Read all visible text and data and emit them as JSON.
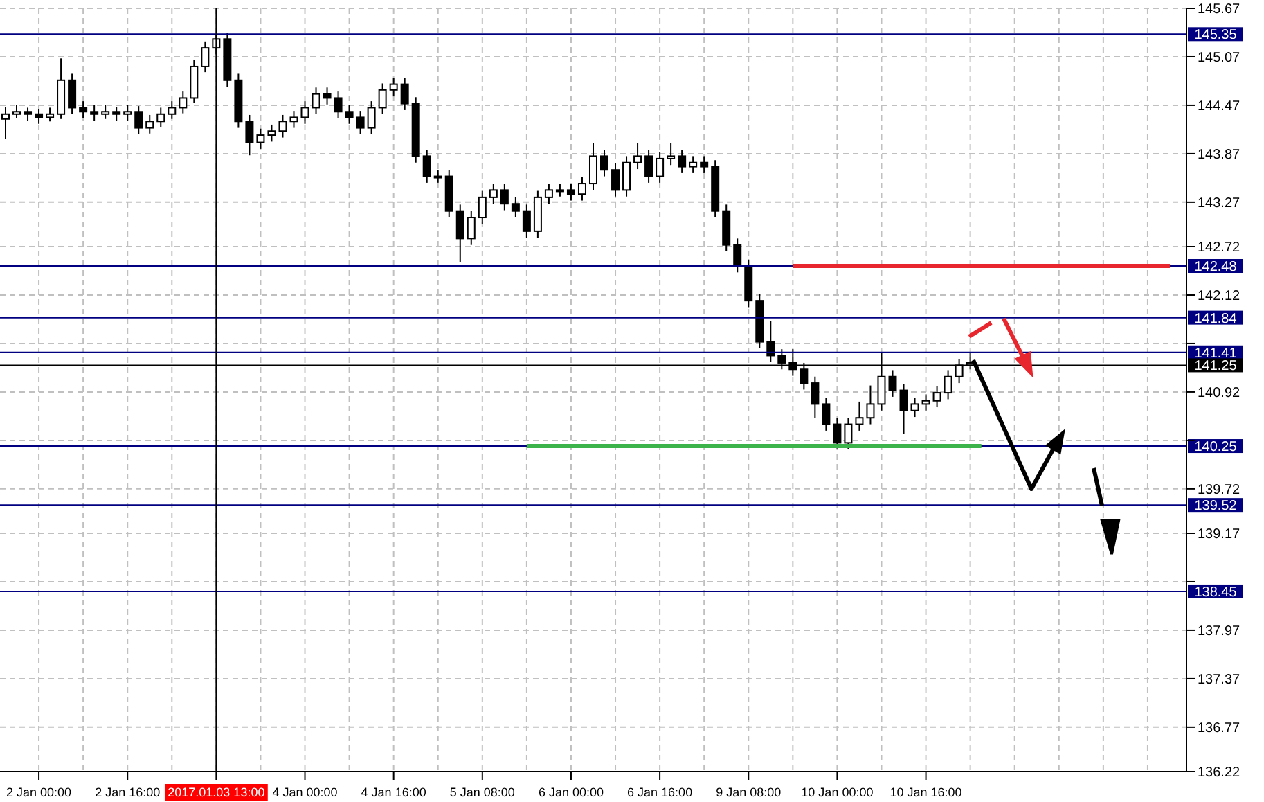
{
  "chart_data": {
    "type": "candlestick",
    "color": "#000000",
    "grid": true,
    "categories": [
      null,
      null,
      null,
      "2 Jan 00:00",
      null,
      null,
      null,
      null,
      null,
      null,
      null,
      "2 Jan 16:00",
      null,
      null,
      null,
      null,
      null,
      null,
      null,
      "2017.01.03 13:00",
      null,
      null,
      null,
      null,
      null,
      null,
      null,
      "4 Jan 00:00",
      null,
      null,
      null,
      null,
      null,
      null,
      null,
      "4 Jan 16:00",
      null,
      null,
      null,
      null,
      null,
      null,
      null,
      "5 Jan 08:00",
      null,
      null,
      null,
      null,
      null,
      null,
      null,
      "6 Jan 00:00",
      null,
      null,
      null,
      null,
      null,
      null,
      null,
      "6 Jan 16:00",
      null,
      null,
      null,
      null,
      null,
      null,
      null,
      "9 Jan 08:00",
      null,
      null,
      null,
      null,
      null,
      null,
      null,
      "10 Jan 00:00",
      null,
      null,
      null,
      null,
      null,
      null,
      null,
      "10 Jan 16:00",
      null,
      null,
      null,
      null,
      null,
      null,
      null,
      null,
      null,
      null,
      null,
      null,
      null,
      null,
      null,
      null,
      null,
      null,
      null,
      null,
      null,
      null,
      null
    ],
    "ohlc": [
      [
        144.3,
        144.45,
        144.05,
        144.36
      ],
      [
        144.36,
        144.47,
        144.31,
        144.39
      ],
      [
        144.39,
        144.44,
        144.28,
        144.36
      ],
      [
        144.36,
        144.42,
        144.24,
        144.32
      ],
      [
        144.32,
        144.44,
        144.27,
        144.36
      ],
      [
        144.36,
        145.05,
        144.3,
        144.78
      ],
      [
        144.78,
        144.86,
        144.36,
        144.44
      ],
      [
        144.44,
        144.52,
        144.31,
        144.39
      ],
      [
        144.39,
        144.47,
        144.28,
        144.36
      ],
      [
        144.36,
        144.47,
        144.3,
        144.39
      ],
      [
        144.39,
        144.45,
        144.28,
        144.36
      ],
      [
        144.36,
        144.47,
        144.28,
        144.39
      ],
      [
        144.39,
        144.46,
        144.11,
        144.19
      ],
      [
        144.19,
        144.35,
        144.12,
        144.27
      ],
      [
        144.27,
        144.44,
        144.2,
        144.36
      ],
      [
        144.36,
        144.52,
        144.3,
        144.44
      ],
      [
        144.44,
        144.64,
        144.37,
        144.56
      ],
      [
        144.56,
        145.03,
        144.5,
        144.95
      ],
      [
        144.95,
        145.26,
        144.88,
        145.18
      ],
      [
        145.18,
        145.35,
        145.1,
        145.29
      ],
      [
        145.29,
        145.37,
        144.7,
        144.78
      ],
      [
        144.78,
        144.86,
        144.19,
        144.27
      ],
      [
        144.27,
        144.35,
        143.85,
        144.01
      ],
      [
        144.01,
        144.18,
        143.93,
        144.1
      ],
      [
        144.1,
        144.23,
        144.02,
        144.15
      ],
      [
        144.15,
        144.35,
        144.07,
        144.27
      ],
      [
        144.27,
        144.4,
        144.19,
        144.32
      ],
      [
        144.32,
        144.52,
        144.24,
        144.44
      ],
      [
        144.44,
        144.69,
        144.36,
        144.61
      ],
      [
        144.61,
        144.69,
        144.48,
        144.56
      ],
      [
        144.56,
        144.64,
        144.31,
        144.39
      ],
      [
        144.39,
        144.47,
        144.24,
        144.32
      ],
      [
        144.32,
        144.4,
        144.11,
        144.19
      ],
      [
        144.19,
        144.52,
        144.11,
        144.44
      ],
      [
        144.44,
        144.74,
        144.36,
        144.66
      ],
      [
        144.66,
        144.81,
        144.58,
        144.73
      ],
      [
        144.73,
        144.81,
        144.41,
        144.49
      ],
      [
        144.49,
        144.57,
        143.76,
        143.84
      ],
      [
        143.84,
        143.92,
        143.51,
        143.59
      ],
      [
        143.59,
        143.67,
        143.51,
        143.59
      ],
      [
        143.59,
        143.67,
        143.08,
        143.16
      ],
      [
        143.16,
        143.24,
        142.53,
        142.82
      ],
      [
        142.82,
        143.16,
        142.74,
        143.08
      ],
      [
        143.08,
        143.41,
        143.0,
        143.33
      ],
      [
        143.33,
        143.5,
        143.25,
        143.42
      ],
      [
        143.42,
        143.5,
        143.17,
        143.25
      ],
      [
        143.25,
        143.33,
        143.08,
        143.16
      ],
      [
        143.16,
        143.24,
        142.83,
        142.91
      ],
      [
        142.91,
        143.41,
        142.83,
        143.33
      ],
      [
        143.33,
        143.5,
        143.25,
        143.42
      ],
      [
        143.42,
        143.5,
        143.34,
        143.42
      ],
      [
        143.42,
        143.5,
        143.29,
        143.37
      ],
      [
        143.37,
        143.58,
        143.29,
        143.5
      ],
      [
        143.5,
        144.0,
        143.42,
        143.84
      ],
      [
        143.84,
        143.92,
        143.59,
        143.67
      ],
      [
        143.67,
        143.75,
        143.34,
        143.42
      ],
      [
        143.42,
        143.84,
        143.34,
        143.76
      ],
      [
        143.76,
        144.0,
        143.68,
        143.84
      ],
      [
        143.84,
        143.92,
        143.51,
        143.59
      ],
      [
        143.59,
        143.89,
        143.51,
        143.81
      ],
      [
        143.81,
        144.0,
        143.73,
        143.84
      ],
      [
        143.84,
        143.92,
        143.63,
        143.71
      ],
      [
        143.71,
        143.84,
        143.63,
        143.76
      ],
      [
        143.76,
        143.84,
        143.63,
        143.71
      ],
      [
        143.71,
        143.79,
        143.08,
        143.16
      ],
      [
        143.16,
        143.24,
        142.66,
        142.74
      ],
      [
        142.74,
        142.82,
        142.4,
        142.48
      ],
      [
        142.48,
        142.56,
        141.97,
        142.05
      ],
      [
        142.05,
        142.13,
        141.46,
        141.54
      ],
      [
        141.54,
        141.8,
        141.29,
        141.37
      ],
      [
        141.37,
        141.45,
        141.2,
        141.28
      ],
      [
        141.28,
        141.45,
        141.12,
        141.2
      ],
      [
        141.2,
        141.28,
        140.95,
        141.03
      ],
      [
        141.03,
        141.11,
        140.6,
        140.77
      ],
      [
        140.77,
        140.85,
        140.44,
        140.52
      ],
      [
        140.52,
        140.6,
        140.22,
        140.29
      ],
      [
        140.29,
        140.6,
        140.21,
        140.52
      ],
      [
        140.52,
        140.8,
        140.44,
        140.6
      ],
      [
        140.6,
        141.0,
        140.52,
        140.77
      ],
      [
        140.77,
        141.4,
        140.69,
        141.11
      ],
      [
        141.11,
        141.19,
        140.86,
        140.94
      ],
      [
        140.94,
        141.02,
        140.4,
        140.69
      ],
      [
        140.69,
        140.85,
        140.61,
        140.77
      ],
      [
        140.77,
        140.89,
        140.69,
        140.81
      ],
      [
        140.81,
        140.99,
        140.73,
        140.91
      ],
      [
        140.91,
        141.19,
        140.83,
        141.11
      ],
      [
        141.11,
        141.33,
        141.03,
        141.25
      ],
      [
        141.25,
        141.4,
        141.2,
        141.28
      ],
      null,
      null,
      null,
      null,
      null,
      null,
      null,
      null,
      null,
      null,
      null,
      null,
      null,
      null,
      null,
      null,
      null,
      null,
      null
    ],
    "series": [
      {
        "type": "line",
        "color": "#e8262d",
        "values": [
          null,
          null,
          null,
          null,
          null,
          null,
          null,
          null,
          null,
          null,
          null,
          null,
          null,
          null,
          null,
          null,
          null,
          null,
          null,
          null,
          null,
          null,
          null,
          null,
          null,
          null,
          null,
          null,
          null,
          null,
          null,
          null,
          null,
          null,
          null,
          null,
          null,
          null,
          null,
          null,
          null,
          null,
          null,
          null,
          null,
          null,
          null,
          null,
          null,
          null,
          null,
          null,
          null,
          null,
          null,
          null,
          null,
          null,
          null,
          null,
          null,
          null,
          null,
          null,
          null,
          null,
          null,
          null,
          null,
          null,
          null,
          142.48,
          142.48,
          142.48,
          142.48,
          142.48,
          142.48,
          142.48,
          142.48,
          142.48,
          142.48,
          142.48,
          142.48,
          142.48,
          142.48,
          142.48,
          142.48,
          142.48,
          142.48,
          142.48,
          142.48,
          142.48,
          142.48,
          142.48,
          142.48,
          142.48,
          142.48,
          142.48,
          142.48,
          142.48,
          142.48,
          142.48,
          142.48,
          142.48,
          142.48,
          142.48,
          null
        ]
      },
      {
        "type": "line",
        "color": "#3cb44b",
        "values": [
          null,
          null,
          null,
          null,
          null,
          null,
          null,
          null,
          null,
          null,
          null,
          null,
          null,
          null,
          null,
          null,
          null,
          null,
          null,
          null,
          null,
          null,
          null,
          null,
          null,
          null,
          null,
          null,
          null,
          null,
          null,
          null,
          null,
          null,
          null,
          null,
          null,
          null,
          null,
          null,
          null,
          null,
          null,
          null,
          null,
          null,
          null,
          140.25,
          140.25,
          140.25,
          140.25,
          140.25,
          140.25,
          140.25,
          140.25,
          140.25,
          140.25,
          140.25,
          140.25,
          140.25,
          140.25,
          140.25,
          140.25,
          140.25,
          140.25,
          140.25,
          140.25,
          140.25,
          140.25,
          140.25,
          140.25,
          140.25,
          140.25,
          140.25,
          140.25,
          140.25,
          140.25,
          140.25,
          140.25,
          140.25,
          140.25,
          140.25,
          140.25,
          140.25,
          140.25,
          140.25,
          140.25,
          140.25,
          140.25,
          null,
          null,
          null,
          null,
          null,
          null,
          null,
          null,
          null,
          null,
          null,
          null,
          null,
          null,
          null,
          null,
          null,
          null
        ]
      }
    ],
    "ylim": [
      136.22,
      145.67
    ],
    "yticks": [
      136.22,
      136.77,
      137.37,
      137.97,
      {
        "value": 138.57,
        "label": null
      },
      139.17,
      139.72,
      {
        "value": 140.32,
        "label": null
      },
      140.92,
      {
        "value": 141.52,
        "label": null
      },
      142.12,
      142.72,
      143.27,
      143.87,
      144.47,
      145.07,
      145.67
    ],
    "ref_lines": [
      {
        "axis": "y",
        "value": 145.35,
        "label": "145.35",
        "color": "#000080"
      },
      {
        "axis": "y",
        "value": 142.48,
        "label": "142.48",
        "color": "#000080"
      },
      {
        "axis": "y",
        "value": 141.84,
        "label": "141.84",
        "color": "#000080"
      },
      {
        "axis": "y",
        "value": 141.41,
        "label": "141.41",
        "color": "#000080"
      },
      {
        "axis": "y",
        "value": 141.25,
        "label": "141.25",
        "color": "#000000"
      },
      {
        "axis": "y",
        "value": 140.25,
        "label": "140.25",
        "color": "#000080"
      },
      {
        "axis": "y",
        "value": 139.52,
        "label": "139.52",
        "color": "#000080"
      },
      {
        "axis": "y",
        "value": 138.45,
        "label": "138.45",
        "color": "#000080"
      },
      {
        "axis": "x",
        "value": "2017.01.03 13:00",
        "color": "#000000"
      }
    ]
  }
}
